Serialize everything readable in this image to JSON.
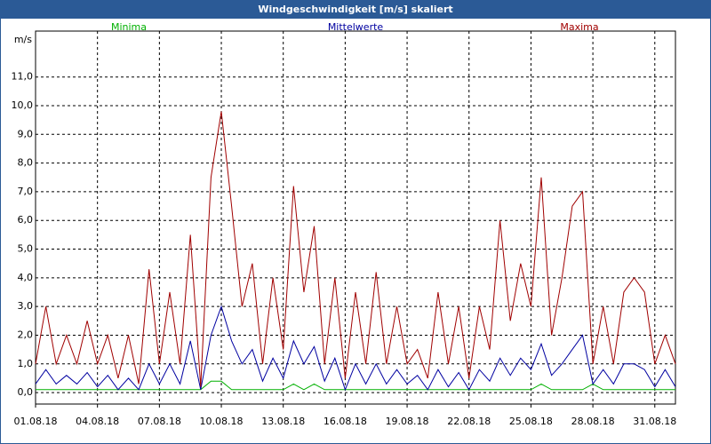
{
  "chart_data": {
    "type": "line",
    "title": "Windgeschwindigkeit [m/s] skaliert",
    "y_label": "m/s",
    "x": [
      1,
      1.5,
      2,
      2.5,
      3,
      3.5,
      4,
      4.5,
      5,
      5.5,
      6,
      6.5,
      7,
      7.5,
      8,
      8.5,
      9,
      9.5,
      10,
      10.5,
      11,
      11.5,
      12,
      12.5,
      13,
      13.5,
      14,
      14.5,
      15,
      15.5,
      16,
      16.5,
      17,
      17.5,
      18,
      18.5,
      19,
      19.5,
      20,
      20.5,
      21,
      21.5,
      22,
      22.5,
      23,
      23.5,
      24,
      24.5,
      25,
      25.5,
      26,
      26.5,
      27,
      27.5,
      28,
      28.5,
      29,
      29.5,
      30,
      30.5,
      31,
      31.5,
      32
    ],
    "series": [
      {
        "name": "Minima",
        "color": "#00b000",
        "values": [
          0.1,
          0.1,
          0.1,
          0.1,
          0.1,
          0.1,
          0.1,
          0.1,
          0.1,
          0.1,
          0.1,
          0.1,
          0.1,
          0.1,
          0.1,
          0.1,
          0.1,
          0.4,
          0.4,
          0.1,
          0.1,
          0.1,
          0.1,
          0.1,
          0.1,
          0.3,
          0.1,
          0.3,
          0.1,
          0.1,
          0.1,
          0.1,
          0.1,
          0.1,
          0.1,
          0.1,
          0.1,
          0.1,
          0.1,
          0.1,
          0.1,
          0.1,
          0.1,
          0.1,
          0.1,
          0.1,
          0.1,
          0.1,
          0.1,
          0.3,
          0.1,
          0.1,
          0.1,
          0.1,
          0.3,
          0.1,
          0.1,
          0.1,
          0.1,
          0.1,
          0.1,
          0.1,
          0.1
        ]
      },
      {
        "name": "Mittelwerte",
        "color": "#0000a0",
        "values": [
          0.3,
          0.8,
          0.3,
          0.6,
          0.3,
          0.7,
          0.2,
          0.6,
          0.1,
          0.5,
          0.1,
          1.0,
          0.3,
          1.0,
          0.3,
          1.8,
          0.1,
          2.0,
          3.0,
          1.8,
          1.0,
          1.5,
          0.4,
          1.2,
          0.5,
          1.8,
          1.0,
          1.6,
          0.4,
          1.2,
          0.1,
          1.0,
          0.3,
          1.0,
          0.3,
          0.8,
          0.3,
          0.6,
          0.1,
          0.8,
          0.2,
          0.7,
          0.1,
          0.8,
          0.4,
          1.2,
          0.6,
          1.2,
          0.8,
          1.7,
          0.6,
          1.0,
          1.5,
          2.0,
          0.3,
          0.8,
          0.3,
          1.0,
          1.0,
          0.8,
          0.2,
          0.8,
          0.2
        ]
      },
      {
        "name": "Maxima",
        "color": "#a00000",
        "values": [
          1.0,
          3.0,
          1.0,
          2.0,
          1.0,
          2.5,
          1.0,
          2.0,
          0.5,
          2.0,
          0.3,
          4.3,
          1.0,
          3.5,
          1.0,
          5.5,
          0.2,
          7.5,
          9.8,
          6.5,
          3.0,
          4.5,
          1.0,
          4.0,
          1.5,
          7.2,
          3.5,
          5.8,
          1.0,
          4.0,
          0.5,
          3.5,
          1.0,
          4.2,
          1.0,
          3.0,
          1.0,
          1.5,
          0.5,
          3.5,
          1.0,
          3.0,
          0.5,
          3.0,
          1.5,
          6.0,
          2.5,
          4.5,
          3.0,
          7.5,
          2.0,
          4.0,
          6.5,
          7.0,
          1.0,
          3.0,
          1.0,
          3.5,
          4.0,
          3.5,
          1.0,
          2.0,
          1.0
        ]
      }
    ],
    "xlim": [
      1,
      32
    ],
    "xticks": [
      {
        "value": 1,
        "label": "01.08.18"
      },
      {
        "value": 4,
        "label": "04.08.18"
      },
      {
        "value": 7,
        "label": "07.08.18"
      },
      {
        "value": 10,
        "label": "10.08.18"
      },
      {
        "value": 13,
        "label": "13.08.18"
      },
      {
        "value": 16,
        "label": "16.08.18"
      },
      {
        "value": 19,
        "label": "19.08.18"
      },
      {
        "value": 22,
        "label": "22.08.18"
      },
      {
        "value": 25,
        "label": "25.08.18"
      },
      {
        "value": 28,
        "label": "28.08.18"
      },
      {
        "value": 31,
        "label": "31.08.18"
      }
    ],
    "ylim": [
      -0.4,
      12.6
    ],
    "yticks": [
      {
        "value": 0,
        "label": "0,0"
      },
      {
        "value": 1,
        "label": "1,0"
      },
      {
        "value": 2,
        "label": "2,0"
      },
      {
        "value": 3,
        "label": "3,0"
      },
      {
        "value": 4,
        "label": "4,0"
      },
      {
        "value": 5,
        "label": "5,0"
      },
      {
        "value": 6,
        "label": "6,0"
      },
      {
        "value": 7,
        "label": "7,0"
      },
      {
        "value": 8,
        "label": "8,0"
      },
      {
        "value": 9,
        "label": "9,0"
      },
      {
        "value": 10,
        "label": "10,0"
      },
      {
        "value": 11,
        "label": "11,0"
      }
    ],
    "grid": true
  }
}
